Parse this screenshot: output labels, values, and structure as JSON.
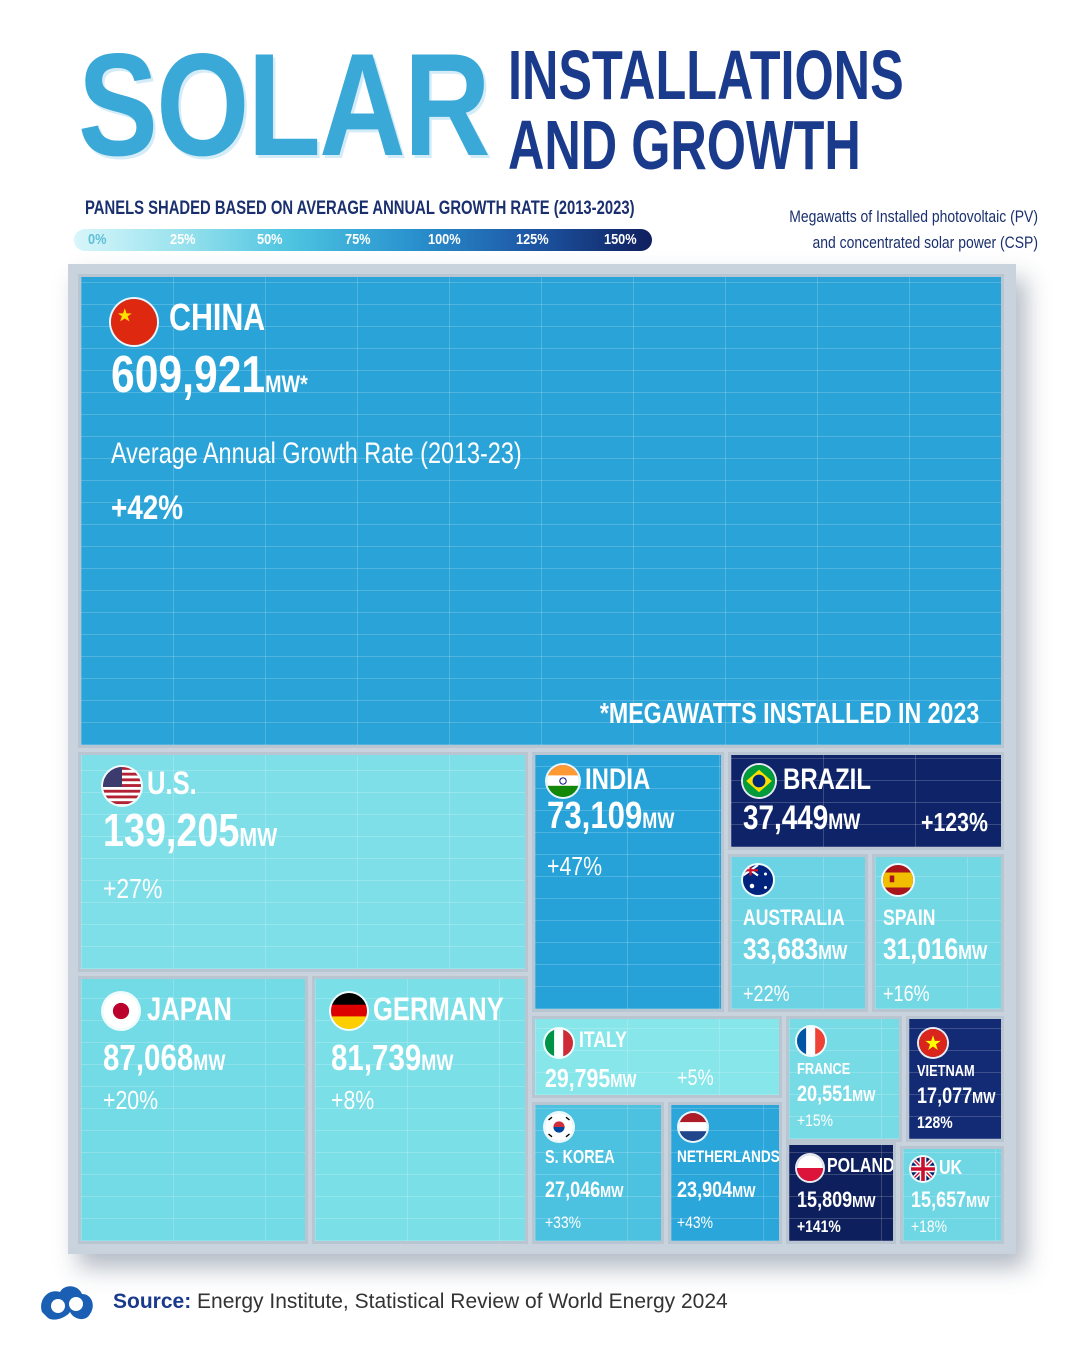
{
  "header": {
    "title_big": "SOLAR",
    "title_line1": "INSTALLATIONS",
    "title_line2": "AND GROWTH",
    "legend_title": "PANELS SHADED BASED ON AVERAGE ANNUAL GROWTH RATE (2013-2023)",
    "legend_ticks": [
      "0%",
      "25%",
      "50%",
      "75%",
      "100%",
      "125%",
      "150%"
    ],
    "units_line1": "Megawatts of Installed photovoltaic (PV)",
    "units_line2": "and concentrated solar power (CSP)"
  },
  "china_extra": {
    "growth_label": "Average Annual Growth Rate (2013-23)",
    "footnote": "*MEGAWATTS INSTALLED IN 2023"
  },
  "colors": {
    "china": "#2aa4d8",
    "us": "#7fdfe8",
    "japan": "#73dbe6",
    "germany": "#7adfe6",
    "india": "#26a2d8",
    "brazil": "#0f2468",
    "australia": "#6bd3e3",
    "spain": "#72d8e4",
    "italy": "#86e6ea",
    "france": "#77dbe6",
    "vietnam": "#132a74",
    "s_korea": "#4dc2e0",
    "netherlands": "#2aa6da",
    "poland": "#0d1f5c",
    "uk": "#6fd7e4"
  },
  "chart_data": {
    "type": "treemap",
    "title": "SOLAR INSTALLATIONS AND GROWTH",
    "subtitle": "PANELS SHADED BASED ON AVERAGE ANNUAL GROWTH RATE (2013-2023)",
    "unit": "MW",
    "color_scale_range": [
      0,
      150
    ],
    "items": [
      {
        "country": "CHINA",
        "mw": 609921,
        "mw_label": "609,921",
        "suffix": "MW*",
        "growth": 42,
        "growth_label": "+42%"
      },
      {
        "country": "U.S.",
        "mw": 139205,
        "mw_label": "139,205",
        "suffix": "MW",
        "growth": 27,
        "growth_label": "+27%"
      },
      {
        "country": "JAPAN",
        "mw": 87068,
        "mw_label": "87,068",
        "suffix": "MW",
        "growth": 20,
        "growth_label": "+20%"
      },
      {
        "country": "GERMANY",
        "mw": 81739,
        "mw_label": "81,739",
        "suffix": "MW",
        "growth": 8,
        "growth_label": "+8%"
      },
      {
        "country": "INDIA",
        "mw": 73109,
        "mw_label": "73,109",
        "suffix": "MW",
        "growth": 47,
        "growth_label": "+47%"
      },
      {
        "country": "BRAZIL",
        "mw": 37449,
        "mw_label": "37,449",
        "suffix": "MW",
        "growth": 123,
        "growth_label": "+123%"
      },
      {
        "country": "AUSTRALIA",
        "mw": 33683,
        "mw_label": "33,683",
        "suffix": "MW",
        "growth": 22,
        "growth_label": "+22%"
      },
      {
        "country": "SPAIN",
        "mw": 31016,
        "mw_label": "31,016",
        "suffix": "MW",
        "growth": 16,
        "growth_label": "+16%"
      },
      {
        "country": "ITALY",
        "mw": 29795,
        "mw_label": "29,795",
        "suffix": "MW",
        "growth": 5,
        "growth_label": "+5%"
      },
      {
        "country": "FRANCE",
        "mw": 20551,
        "mw_label": "20,551",
        "suffix": "MW",
        "growth": 15,
        "growth_label": "+15%"
      },
      {
        "country": "VIETNAM",
        "mw": 17077,
        "mw_label": "17,077",
        "suffix": "MW",
        "growth": 128,
        "growth_label": "128%"
      },
      {
        "country": "S. KOREA",
        "mw": 27046,
        "mw_label": "27,046",
        "suffix": "MW",
        "growth": 33,
        "growth_label": "+33%"
      },
      {
        "country": "NETHERLANDS",
        "mw": 23904,
        "mw_label": "23,904",
        "suffix": "MW",
        "growth": 43,
        "growth_label": "+43%"
      },
      {
        "country": "POLAND",
        "mw": 15809,
        "mw_label": "15,809",
        "suffix": "MW",
        "growth": 141,
        "growth_label": "+141%"
      },
      {
        "country": "UK",
        "mw": 15657,
        "mw_label": "15,657",
        "suffix": "MW",
        "growth": 18,
        "growth_label": "+18%"
      }
    ]
  },
  "footer": {
    "source_label": "Source:",
    "source_text": " Energy Institute, Statistical Review of World Energy 2024"
  }
}
